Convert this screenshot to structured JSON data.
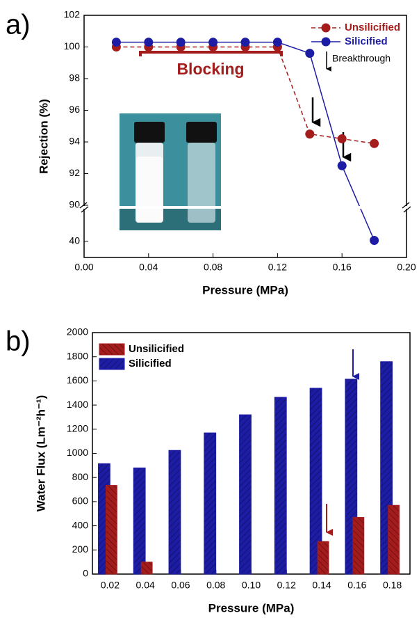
{
  "chart_data": [
    {
      "type": "line",
      "panel_label": "a)",
      "x_label": "Pressure (MPa)",
      "y_label": "Rejection (%)",
      "x": [
        0.02,
        0.04,
        0.06,
        0.08,
        0.1,
        0.12,
        0.14,
        0.16,
        0.18
      ],
      "series": [
        {
          "name": "Unsilicified",
          "color": "#a51c1c",
          "dashed": true,
          "values": [
            100,
            100,
            100,
            100,
            100,
            100,
            94.5,
            94.2,
            93.9
          ]
        },
        {
          "name": "Silicified",
          "color": "#1c1ca5",
          "dashed": false,
          "values": [
            100.3,
            100.3,
            100.3,
            100.3,
            100.3,
            100.3,
            99.6,
            92.5,
            40.1
          ]
        }
      ],
      "xlim": [
        0,
        0.2
      ],
      "xticks": [
        {
          "value": 0,
          "label": "0.00"
        },
        {
          "value": 0.04,
          "label": "0.04"
        },
        {
          "value": 0.08,
          "label": "0.08"
        },
        {
          "value": 0.12,
          "label": "0.12"
        },
        {
          "value": 0.16,
          "label": "0.16"
        },
        {
          "value": 0.2,
          "label": "0.20"
        }
      ],
      "ylim": [
        90,
        102
      ],
      "yticks": [
        90,
        92,
        94,
        96,
        98,
        100,
        102
      ],
      "lower_ylim": [
        38,
        44
      ],
      "lower_yticks": [
        40
      ],
      "axis_break": true,
      "annotations": [
        "Blocking",
        "Breakthrough"
      ],
      "legend": "upper right"
    },
    {
      "type": "bar",
      "panel_label": "b)",
      "x_label": "Pressure (MPa)",
      "y_label": "Water Flux (Lm⁻²h⁻¹)",
      "categories": [
        "0.02",
        "0.04",
        "0.06",
        "0.08",
        "0.10",
        "0.12",
        "0.14",
        "0.16",
        "0.18"
      ],
      "series": [
        {
          "name": "Unsilicified",
          "color": "#a51c1c",
          "values": [
            735,
            100,
            null,
            null,
            null,
            null,
            270,
            470,
            570
          ]
        },
        {
          "name": "Silicified",
          "color": "#1c1ca5",
          "values": [
            915,
            880,
            1025,
            1170,
            1320,
            1465,
            1540,
            1615,
            1760
          ]
        }
      ],
      "ylim": [
        0,
        2000
      ],
      "yticks": [
        0,
        200,
        400,
        600,
        800,
        1000,
        1200,
        1400,
        1600,
        1800,
        2000
      ],
      "hatch": true,
      "legend": "upper left"
    }
  ]
}
